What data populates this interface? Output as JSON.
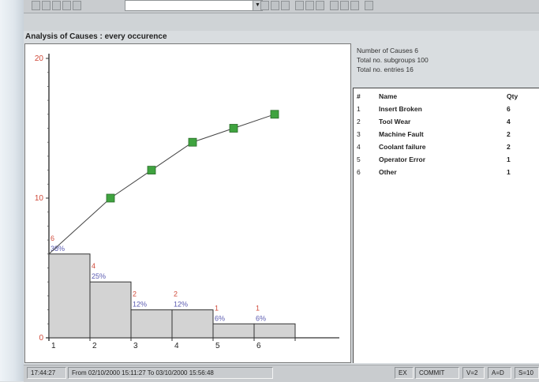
{
  "window_title": "Analysis of Causes : every occurence",
  "info": {
    "causes": "Number of Causes 6",
    "subgroups": "Total no. subgroups 100",
    "entries": "Total no. entries 16"
  },
  "table": {
    "headers": {
      "num": "#",
      "name": "Name",
      "qty": "Qty"
    },
    "rows": [
      {
        "num": "1",
        "name": "Insert Broken",
        "qty": "6"
      },
      {
        "num": "2",
        "name": "Tool Wear",
        "qty": "4"
      },
      {
        "num": "3",
        "name": "Machine Fault",
        "qty": "2"
      },
      {
        "num": "4",
        "name": "Coolant failure",
        "qty": "2"
      },
      {
        "num": "5",
        "name": "Operator Error",
        "qty": "1"
      },
      {
        "num": "6",
        "name": "Other",
        "qty": "1"
      }
    ]
  },
  "status": {
    "time": "17:44:27",
    "range": "From 02/10/2000 15:11:27 To 03/10/2000 15:56:48",
    "ex": "EX",
    "commit": "COMMIT",
    "v": "V=2",
    "a": "A=D",
    "s": "S=10"
  },
  "colors": {
    "count_label": "#d04a3a",
    "percent_label": "#5a5ab0",
    "line_marker": "#3fa33f",
    "bar_fill": "#d3d3d3"
  },
  "chart_data": {
    "type": "bar",
    "title": "Analysis of Causes : every occurence",
    "categories": [
      "1",
      "2",
      "3",
      "4",
      "5",
      "6"
    ],
    "counts": [
      6,
      4,
      2,
      2,
      1,
      1
    ],
    "count_labels": [
      "6",
      "4",
      "2",
      "2",
      "1",
      "1"
    ],
    "percent_labels": [
      "38%",
      "25%",
      "12%",
      "12%",
      "6%",
      "6%"
    ],
    "cumulative": [
      6,
      10,
      12,
      14,
      15,
      16
    ],
    "y_ticks": [
      "0",
      "10",
      "20"
    ],
    "ylim": [
      0,
      20
    ],
    "xlabel": "",
    "ylabel": ""
  }
}
